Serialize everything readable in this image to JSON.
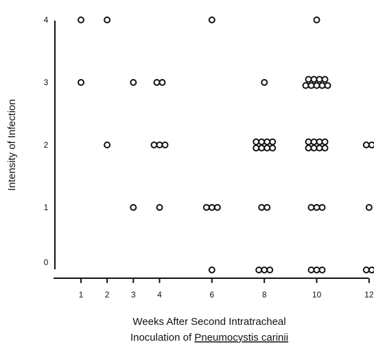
{
  "chart_data": {
    "type": "scatter",
    "xlabel_line1": "Weeks After Second Intratracheal",
    "xlabel_line2_prefix": "Inoculation of ",
    "xlabel_line2_organism": "Pneumocystis carinii",
    "ylabel": "Intensity of Infection",
    "xlim": [
      0,
      12
    ],
    "ylim": [
      0,
      4
    ],
    "x_ticks": [
      1,
      2,
      3,
      4,
      6,
      8,
      10,
      12
    ],
    "y_ticks": [
      0,
      1,
      2,
      3,
      4
    ],
    "grid": false,
    "groups": [
      {
        "x": 1,
        "y": 4,
        "count": 1
      },
      {
        "x": 1,
        "y": 3,
        "count": 1
      },
      {
        "x": 2,
        "y": 4,
        "count": 1
      },
      {
        "x": 2,
        "y": 2,
        "count": 1
      },
      {
        "x": 3,
        "y": 3,
        "count": 1
      },
      {
        "x": 3,
        "y": 1,
        "count": 1
      },
      {
        "x": 4,
        "y": 3,
        "count": 2
      },
      {
        "x": 4,
        "y": 2,
        "count": 3
      },
      {
        "x": 4,
        "y": 1,
        "count": 1
      },
      {
        "x": 6,
        "y": 4,
        "count": 1
      },
      {
        "x": 6,
        "y": 1,
        "count": 3
      },
      {
        "x": 6,
        "y": 0,
        "count": 1
      },
      {
        "x": 8,
        "y": 3,
        "count": 1
      },
      {
        "x": 8,
        "y": 2,
        "count": 8
      },
      {
        "x": 8,
        "y": 1,
        "count": 2
      },
      {
        "x": 8,
        "y": 0,
        "count": 3
      },
      {
        "x": 10,
        "y": 4,
        "count": 1
      },
      {
        "x": 10,
        "y": 3,
        "count": 9
      },
      {
        "x": 10,
        "y": 2,
        "count": 8
      },
      {
        "x": 10,
        "y": 1,
        "count": 3
      },
      {
        "x": 10,
        "y": 0,
        "count": 3
      },
      {
        "x": 12,
        "y": 2,
        "count": 2
      },
      {
        "x": 12,
        "y": 1,
        "count": 1
      },
      {
        "x": 12,
        "y": 0,
        "count": 2
      }
    ]
  }
}
